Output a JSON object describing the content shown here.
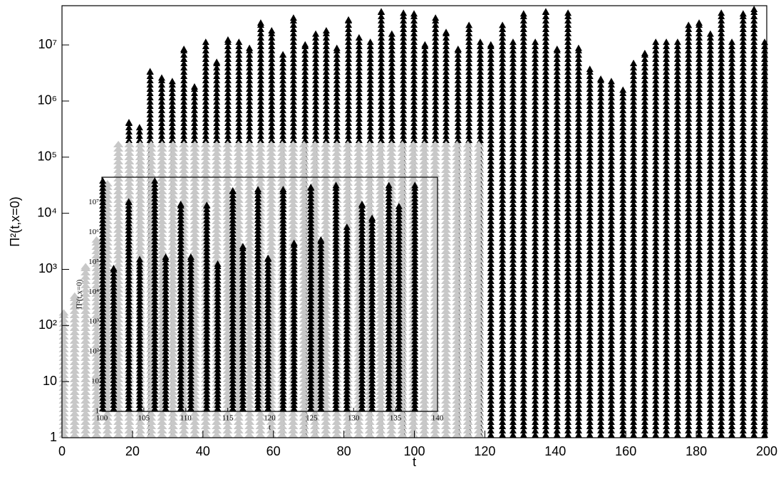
{
  "chart_data": [
    {
      "type": "scatter",
      "marker": "triangle",
      "log_y": true,
      "x_label": "t",
      "y_label": "Π²(t,x=0)",
      "xlim": [
        0,
        200
      ],
      "xticks": [
        0,
        20,
        40,
        60,
        80,
        100,
        120,
        140,
        160,
        180,
        200
      ],
      "ylim": [
        1,
        50000000
      ],
      "yticks": [
        1,
        10,
        {
          "value": 100,
          "label": "10²"
        },
        {
          "value": 1000,
          "label": "10³"
        },
        {
          "value": 10000,
          "label": "10⁴"
        },
        {
          "value": 100000,
          "label": "10⁵"
        },
        {
          "value": 1000000,
          "label": "10⁶"
        },
        {
          "value": 10000000,
          "label": "10⁷"
        }
      ],
      "series": [
        {
          "color": "#000000",
          "x": [
            19,
            22,
            25,
            28.3,
            31.3,
            34.6,
            37.6,
            40.8,
            43.9,
            47.1,
            50.2,
            53.2,
            56.4,
            59.5,
            62.7,
            65.7,
            69,
            72,
            75,
            78,
            81.3,
            84.3,
            87.5,
            90.6,
            93.6,
            96.9,
            99.9,
            103,
            106,
            109,
            112.4,
            115.5,
            118.7,
            121.7,
            125,
            128,
            131,
            134.3,
            137.3,
            140.5,
            143.6,
            146.6,
            149.8,
            152.9,
            155.9,
            159.2,
            162.2,
            165.4,
            168.5,
            171.5,
            174.7,
            177.8,
            180.8,
            184,
            187.1,
            190.1,
            193.3,
            196.4,
            199.4
          ],
          "values": [
            370000,
            300000,
            3000000,
            2300000,
            2000000,
            7500000,
            1600000,
            10000000,
            4400000,
            11000000,
            10000000,
            7800000,
            22000000,
            16000000,
            6000000,
            27000000,
            9000000,
            14000000,
            16000000,
            7800000,
            25000000,
            12000000,
            10000000,
            35000000,
            14000000,
            33000000,
            32000000,
            9000000,
            27000000,
            15000000,
            7500000,
            20000000,
            10000000,
            9000000,
            20000000,
            10000000,
            32000000,
            10000000,
            35000000,
            7500000,
            33000000,
            7800000,
            3300000,
            2200000,
            2000000,
            1400000,
            4200000,
            6300000,
            10000000,
            10000000,
            10000000,
            20000000,
            22000000,
            14000000,
            33000000,
            10000000,
            32000000,
            48000000,
            10000000
          ]
        },
        {
          "color": "#c8c8c8",
          "x": [
            0.5,
            3.6,
            6.7,
            9.8,
            12.9,
            16,
            19.1,
            22.2,
            25.3,
            28.4,
            31.5,
            34.6,
            37.7,
            40.8,
            43.9,
            47,
            50.1,
            53.2,
            56.3,
            59.4,
            62.5,
            65.6,
            68.7,
            71.8,
            74.9,
            78,
            81.1,
            84.2,
            87.3,
            90.4,
            93.5,
            96.6,
            99.7,
            102.8,
            105.9,
            109,
            112.1,
            115.2,
            118.3
          ],
          "values": [
            150,
            300,
            1000,
            3000,
            30000,
            150000,
            150000,
            150000,
            150000,
            150000,
            150000,
            150000,
            150000,
            150000,
            150000,
            150000,
            150000,
            150000,
            150000,
            150000,
            150000,
            150000,
            150000,
            150000,
            150000,
            150000,
            150000,
            150000,
            150000,
            150000,
            150000,
            150000,
            150000,
            150000,
            150000,
            150000,
            150000,
            150000,
            150000
          ]
        }
      ]
    },
    {
      "type": "scatter",
      "marker": "triangle",
      "log_y": true,
      "x_label": "t",
      "y_label": "Π²(t,x=0)",
      "xlim": [
        100,
        140
      ],
      "xticks": [
        100,
        105,
        110,
        115,
        120,
        125,
        130,
        135,
        140
      ],
      "ylim": [
        1,
        70000000
      ],
      "yticks": [
        1,
        10,
        {
          "value": 100,
          "label": "10²"
        },
        {
          "value": 1000,
          "label": "10³"
        },
        {
          "value": 10000,
          "label": "10⁴"
        },
        {
          "value": 100000,
          "label": "10⁵"
        },
        {
          "value": 1000000,
          "label": "10⁶"
        },
        {
          "value": 10000000,
          "label": "10⁷"
        }
      ],
      "series": [
        {
          "color": "#000000",
          "x": [
            100.1,
            101.4,
            103.2,
            104.5,
            106.3,
            107.6,
            109.4,
            110.6,
            112.5,
            113.8,
            115.6,
            116.8,
            118.6,
            119.8,
            121.6,
            122.9,
            124.9,
            126.1,
            127.9,
            129.2,
            131,
            132.2,
            134.2,
            135.4,
            137.3
          ],
          "values": [
            48000000,
            50000,
            8500000,
            100000,
            55000000,
            120000,
            7000000,
            120000,
            6500000,
            70000,
            20000000,
            270000,
            22000000,
            110000,
            22000000,
            350000,
            26000000,
            450000,
            30000000,
            1200000,
            7000000,
            2400000,
            30000000,
            6000000,
            30000000
          ]
        }
      ]
    }
  ]
}
